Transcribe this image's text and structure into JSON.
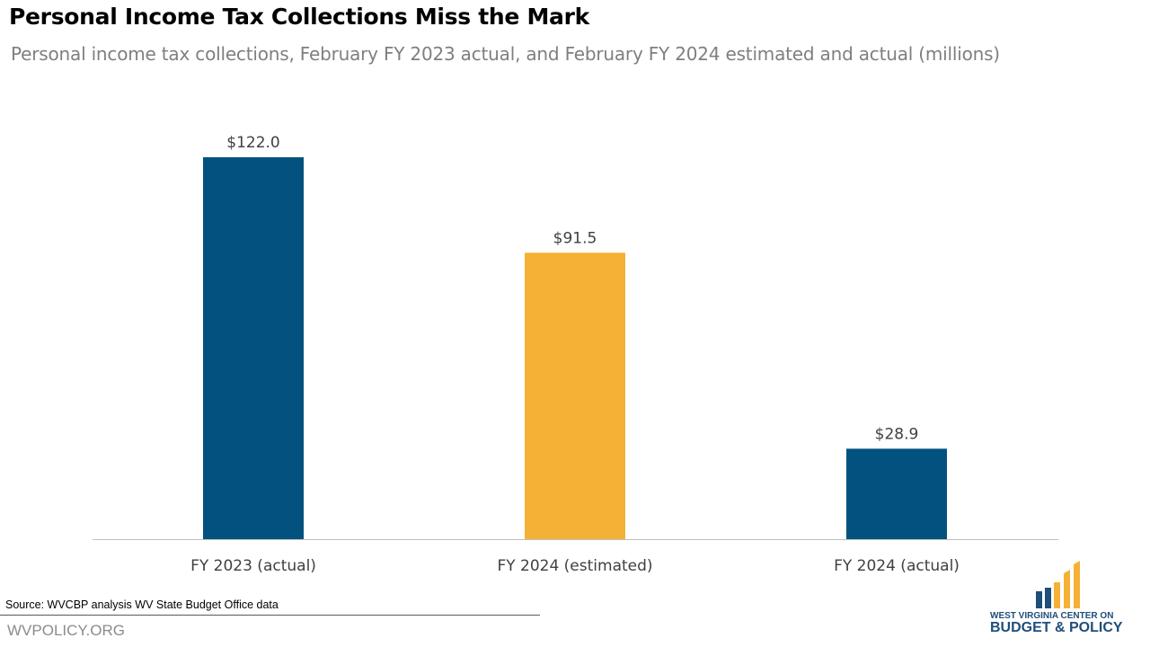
{
  "title": "Personal Income Tax Collections Miss the Mark",
  "subtitle": "Personal income tax collections, February FY 2023 actual, and February FY 2024 estimated and actual (millions)",
  "chart_data": {
    "type": "bar",
    "categories": [
      "FY 2023 (actual)",
      "FY 2024 (estimated)",
      "FY 2024 (actual)"
    ],
    "values": [
      122.0,
      91.5,
      28.9
    ],
    "data_labels": [
      "$122.0",
      "$91.5",
      "$28.9"
    ],
    "colors": [
      "#02517f",
      "#f5b135",
      "#02517f"
    ],
    "ylim": [
      0,
      122
    ],
    "grid": false,
    "legend": "none"
  },
  "footer": {
    "source": "Source:  WVCBP analysis WV State Budget Office data",
    "site": "WVPOLICY.ORG"
  },
  "logo": {
    "line1": "WEST VIRGINIA CENTER ON",
    "line2": "BUDGET & POLICY",
    "colors": [
      "#1f4e79",
      "#f5b135"
    ]
  }
}
